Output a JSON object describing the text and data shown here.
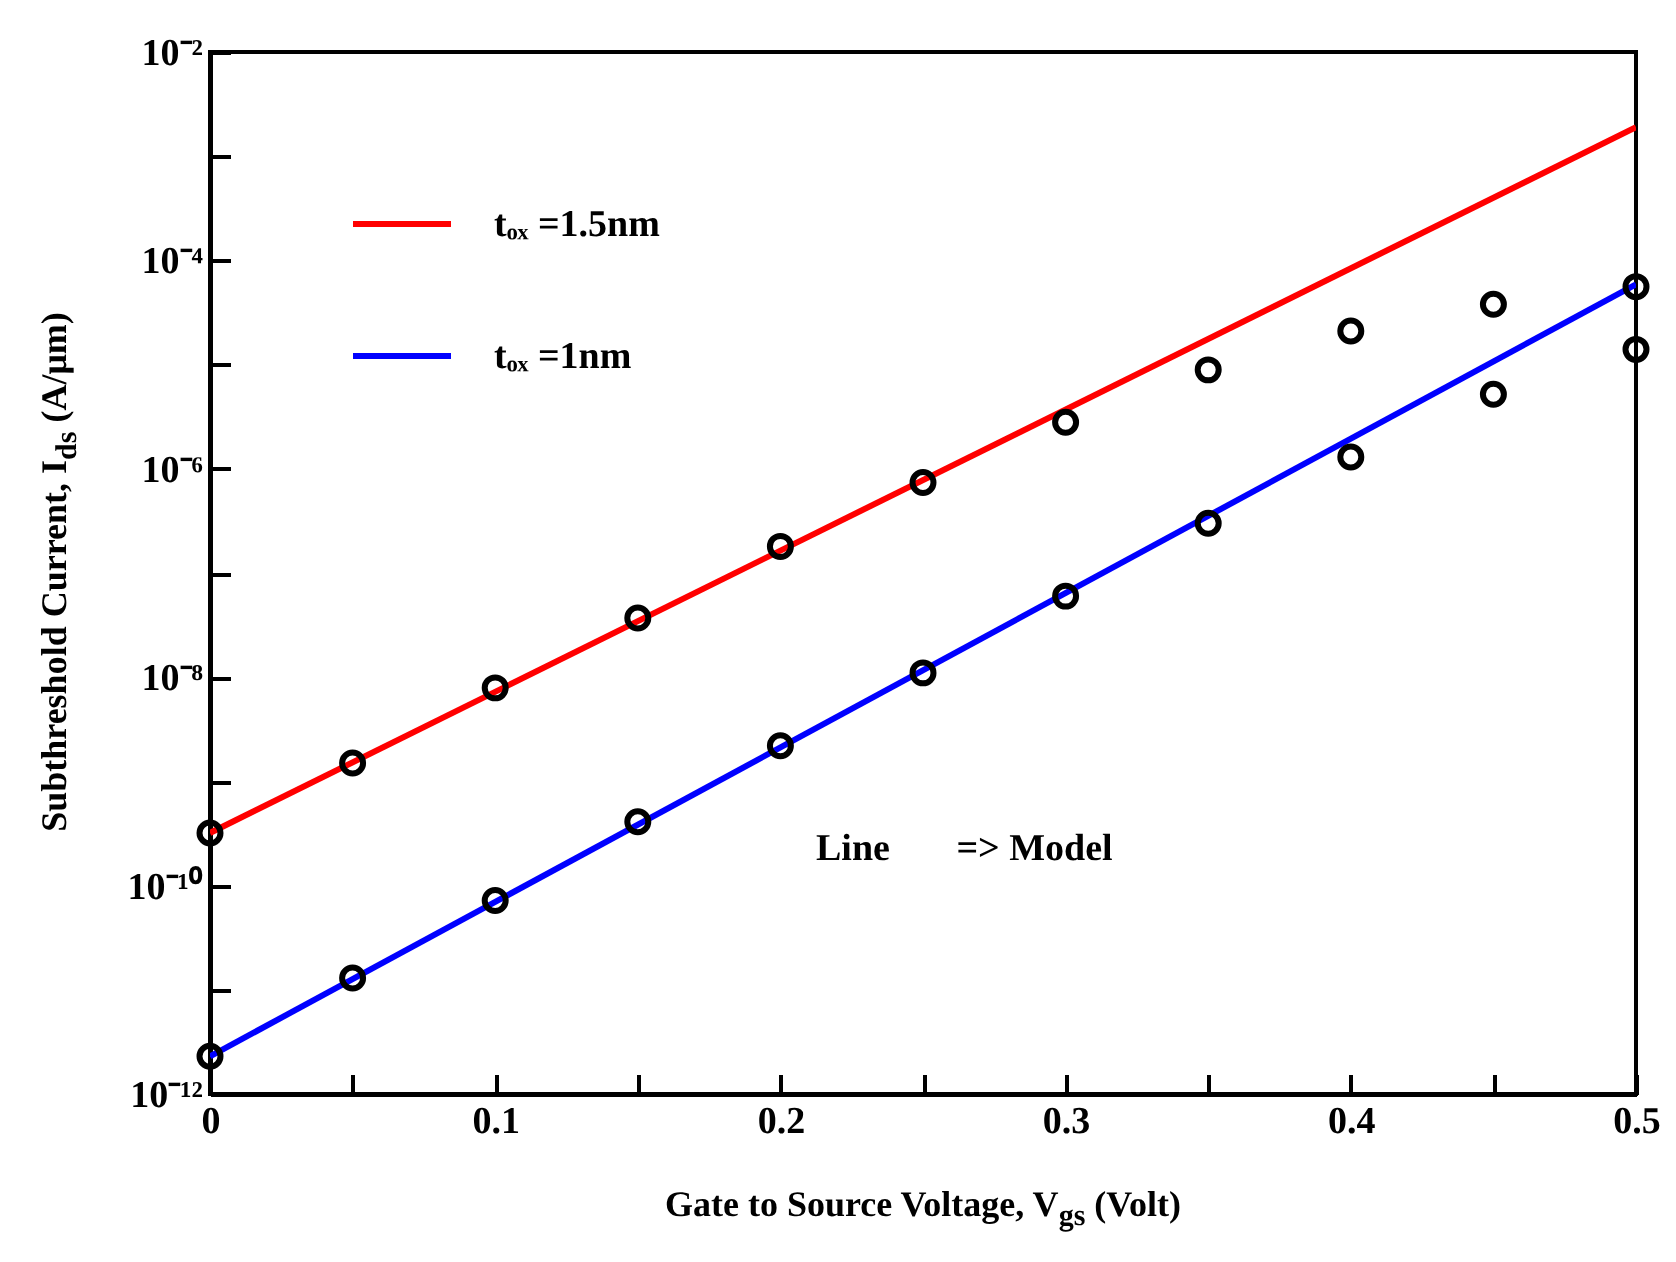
{
  "chart_data": {
    "type": "line",
    "xlabel": "Gate to Source Voltage, V$_{gs}$ (Volt)",
    "ylabel": "Subthreshold Current, I$_{ds}$ (A/μm)",
    "annotations": [
      "Line       => Model"
    ],
    "xlim": [
      0,
      0.5
    ],
    "ylim": [
      1e-12,
      0.01
    ],
    "xticks": [
      0,
      {
        "value": 0.05,
        "label": null
      },
      0.1,
      {
        "value": 0.15,
        "label": null
      },
      0.2,
      {
        "value": 0.25,
        "label": null
      },
      0.3,
      {
        "value": 0.35,
        "label": null
      },
      0.4,
      {
        "value": 0.45,
        "label": null
      },
      0.5
    ],
    "yticks": [
      {
        "value": 1e-12,
        "label": "10⁻¹²"
      },
      {
        "value": 1e-11,
        "label": null
      },
      {
        "value": 1e-10,
        "label": "10⁻¹⁰"
      },
      {
        "value": 1e-09,
        "label": null
      },
      {
        "value": 1e-08,
        "label": "10⁻⁸"
      },
      {
        "value": 1e-07,
        "label": null
      },
      {
        "value": 1e-06,
        "label": "10⁻⁶"
      },
      {
        "value": 1e-05,
        "label": null
      },
      {
        "value": 0.0001,
        "label": "10⁻⁴"
      },
      {
        "value": 0.001,
        "label": null
      },
      {
        "value": 0.01,
        "label": "10⁻²"
      }
    ],
    "log": "y",
    "grid": false,
    "legend": "top left",
    "line_style": "solid",
    "series": [
      {
        "name": "tₒₓ =1.5nm",
        "color": "#ff0000",
        "x": [
          0,
          0.5
        ],
        "values": [
          3.2e-10,
          0.0019
        ]
      },
      {
        "name": "tₒₓ =1nm",
        "color": "#0000ff",
        "x": [
          0,
          0.5
        ],
        "values": [
          2.3e-12,
          5.9e-05
        ]
      },
      {
        "type": "scatter",
        "marker": "circle",
        "color": "#000000",
        "x": [
          0,
          0.05,
          0.1,
          0.15,
          0.2,
          0.25,
          0.3,
          0.35,
          0.4,
          0.45,
          0.5
        ],
        "values": [
          3.2e-10,
          1.5e-09,
          7.9e-09,
          3.7e-08,
          1.8e-07,
          7.4e-07,
          2.8e-06,
          8.9e-06,
          2.1e-05,
          3.8e-05,
          5.6e-05
        ]
      },
      {
        "type": "scatter",
        "marker": "circle",
        "color": "#000000",
        "x": [
          0,
          0.05,
          0.1,
          0.15,
          0.2,
          0.25,
          0.3,
          0.35,
          0.4,
          0.45,
          0.5
        ],
        "values": [
          2.3e-12,
          1.3e-11,
          7.2e-11,
          4.1e-10,
          2.2e-09,
          1.1e-08,
          6e-08,
          3e-07,
          1.3e-06,
          5.2e-06,
          1.4e-05
        ]
      }
    ]
  }
}
